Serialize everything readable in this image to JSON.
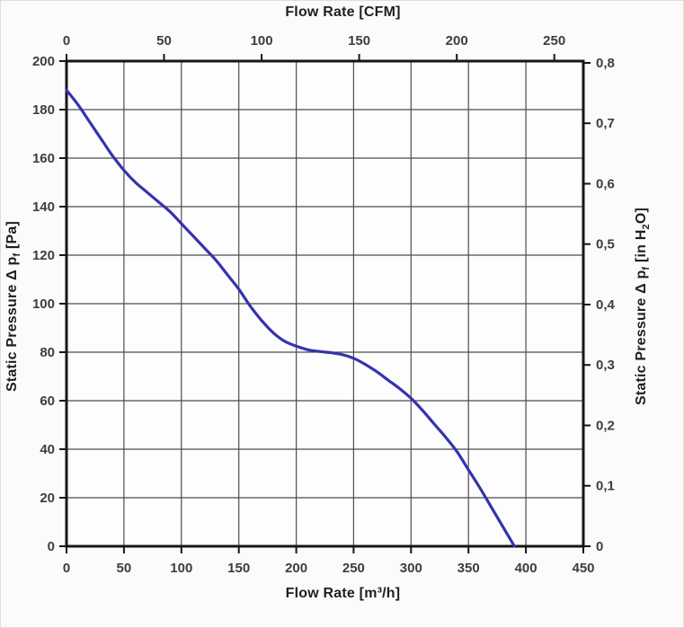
{
  "titles": {
    "top": "Flow Rate [CFM]",
    "bottom": "Flow Rate [m³/h]",
    "left": {
      "pre": "Static Pressure Δ p",
      "sub": "f",
      "post": " [Pa]"
    },
    "right": {
      "pre": "Static Pressure Δ p",
      "sub": "f",
      "mid": " [in H",
      "sub2": "2",
      "post": "O]"
    }
  },
  "colors": {
    "curve": "#3434ae",
    "grid": "#4d4d4d",
    "axis": "#161616",
    "tick_text": "#3d3d3d",
    "plot_background": "#fdfdfd"
  },
  "chart_data": {
    "type": "line",
    "title": "Fan performance curve: Static Pressure vs Flow Rate",
    "axes": {
      "bottom": {
        "label": "Flow Rate [m³/h]",
        "range": [
          0,
          450
        ],
        "ticks": [
          0,
          50,
          100,
          150,
          200,
          250,
          300,
          350,
          400,
          450
        ],
        "grid_step": 50
      },
      "top": {
        "label": "Flow Rate [CFM]",
        "ticks": [
          0,
          50,
          100,
          150,
          200,
          250
        ],
        "cfm_to_m3h": 1.699011
      },
      "left": {
        "label": "Static Pressure Δ pf [Pa]",
        "range": [
          0,
          200
        ],
        "ticks": [
          0,
          20,
          40,
          60,
          80,
          100,
          120,
          140,
          160,
          180,
          200
        ],
        "grid_step": 20
      },
      "right": {
        "label": "Static Pressure Δ pf [in H2O]",
        "tick_values": [
          0,
          0.1,
          0.2,
          0.3,
          0.4,
          0.5,
          0.6,
          0.7,
          0.8
        ],
        "tick_labels": [
          "0",
          "0,1",
          "0,2",
          "0,3",
          "0,4",
          "0,5",
          "0,6",
          "0,7",
          "0,8"
        ],
        "inh2o_to_pa": 249.089
      }
    },
    "grid": true,
    "legend": false,
    "series": [
      {
        "name": "static-pressure-curve",
        "color": "#3434ae",
        "x_unit": "m³/h",
        "y_unit": "Pa",
        "points": [
          [
            0,
            188
          ],
          [
            10,
            182
          ],
          [
            20,
            175
          ],
          [
            30,
            168
          ],
          [
            40,
            161
          ],
          [
            50,
            155
          ],
          [
            60,
            150
          ],
          [
            70,
            146
          ],
          [
            80,
            142
          ],
          [
            90,
            138
          ],
          [
            100,
            133
          ],
          [
            110,
            128
          ],
          [
            120,
            123
          ],
          [
            130,
            118
          ],
          [
            140,
            112
          ],
          [
            150,
            106
          ],
          [
            160,
            99
          ],
          [
            170,
            93
          ],
          [
            180,
            88
          ],
          [
            190,
            84.5
          ],
          [
            200,
            82.5
          ],
          [
            210,
            81
          ],
          [
            220,
            80.3
          ],
          [
            230,
            79.8
          ],
          [
            240,
            79
          ],
          [
            250,
            77.5
          ],
          [
            260,
            75
          ],
          [
            270,
            72
          ],
          [
            280,
            68.5
          ],
          [
            290,
            65
          ],
          [
            300,
            61
          ],
          [
            310,
            56
          ],
          [
            320,
            50.5
          ],
          [
            330,
            45
          ],
          [
            340,
            39
          ],
          [
            350,
            31.5
          ],
          [
            360,
            24
          ],
          [
            370,
            16
          ],
          [
            380,
            8
          ],
          [
            390,
            0
          ]
        ],
        "key_points": {
          "pressure_at_zero_flow_pa": 188,
          "plateau_pressure_pa": 80,
          "max_flow_at_zero_pressure_m3h": 390
        }
      }
    ]
  }
}
